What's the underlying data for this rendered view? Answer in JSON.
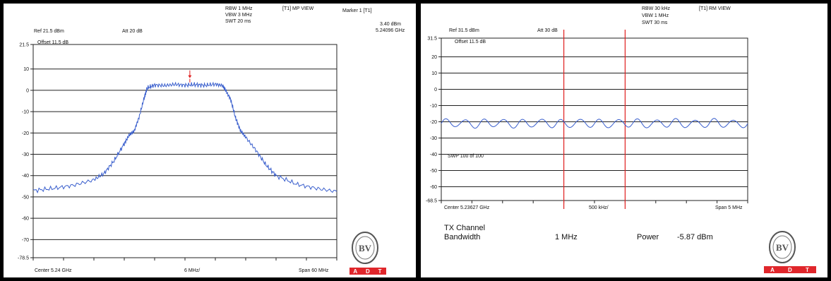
{
  "chart_data": [
    {
      "type": "line",
      "header": {
        "rbw": "RBW 1 MHz",
        "vbw": "VBW 3 MHz",
        "swt": "SWT 20 ms",
        "view": "[T1] MP VIEW",
        "marker_label": "Marker 1 [T1]",
        "marker_level": "3.40 dBm",
        "marker_freq": "5.24096 GHz",
        "ref": "Ref 21.5 dBm",
        "att": "Att  20 dB",
        "offset": "Offset 11.5 dB"
      },
      "ylim": [
        -78.5,
        21.5
      ],
      "y_ticks": [
        "21.5",
        "10",
        "0",
        "-10",
        "-20",
        "-30",
        "-40",
        "-50",
        "-60",
        "-70",
        "-78.5"
      ],
      "y_tick_values": [
        21.5,
        10,
        0,
        -10,
        -20,
        -30,
        -40,
        -50,
        -60,
        -70,
        -78.5
      ],
      "xlim": [
        5.21,
        5.27
      ],
      "x_labels": {
        "center": "Center 5.24 GHz",
        "div": "6 MHz/",
        "span": "Span 60 MHz"
      },
      "marker": {
        "x": 5.24096,
        "y": 3.4
      },
      "series": [
        {
          "color": "#3a5fcd",
          "x": [
            5.21,
            5.214,
            5.218,
            5.222,
            5.224,
            5.226,
            5.228,
            5.229,
            5.23,
            5.231,
            5.232,
            5.2325,
            5.234,
            5.236,
            5.238,
            5.24,
            5.242,
            5.244,
            5.246,
            5.2475,
            5.248,
            5.249,
            5.25,
            5.251,
            5.252,
            5.254,
            5.256,
            5.258,
            5.262,
            5.266,
            5.27
          ],
          "values": [
            -47,
            -46,
            -44.5,
            -42,
            -39,
            -33,
            -25,
            -21,
            -19,
            -12,
            -3,
            1,
            2.5,
            2.2,
            2.8,
            2.4,
            2.7,
            2.3,
            2.9,
            2.2,
            0,
            -4,
            -13,
            -19,
            -22,
            -28,
            -35,
            -40,
            -44,
            -46,
            -47.5
          ]
        }
      ]
    },
    {
      "type": "line",
      "header": {
        "rbw": "RBW 30 kHz",
        "vbw": "VBW 1 MHz",
        "swt": "SWT 30 ms",
        "view": "[T1] RM VIEW",
        "ref": "Ref 31.5 dBm",
        "att": "Att  30 dB",
        "offset": "Offset 11.5 dB",
        "sweep": "SWP 100 of 100"
      },
      "ylim": [
        -68.5,
        31.5
      ],
      "y_ticks": [
        "31.5",
        "20",
        "10",
        "0",
        "-10",
        "-20",
        "-30",
        "-40",
        "-50",
        "-60",
        "-68.5"
      ],
      "y_tick_values": [
        31.5,
        20,
        10,
        0,
        -10,
        -20,
        -30,
        -40,
        -50,
        -60,
        -68.5
      ],
      "xlim": [
        5.23377,
        5.23877
      ],
      "x_labels": {
        "center": "Center 5.23627 GHz",
        "div": "500 kHz/",
        "span": "Span 5 MHz"
      },
      "channel_lines": [
        5.23577,
        5.23677
      ],
      "series": [
        {
          "color": "#3a5fcd",
          "x": [
            5.23377,
            5.23877
          ],
          "values": [
            -21,
            -21
          ],
          "ripple_amplitude": 2.5,
          "ripple_periods": 16
        }
      ],
      "tx_channel": {
        "label": "TX Channel",
        "sublabel": "Bandwidth",
        "bandwidth": "1 MHz",
        "power_label": "Power",
        "power_value": "-5.87 dBm"
      }
    }
  ],
  "logo": {
    "seal_text": "BUREAU VERITAS",
    "seal_year": "1828",
    "brand": [
      "A",
      "D",
      "T"
    ]
  }
}
